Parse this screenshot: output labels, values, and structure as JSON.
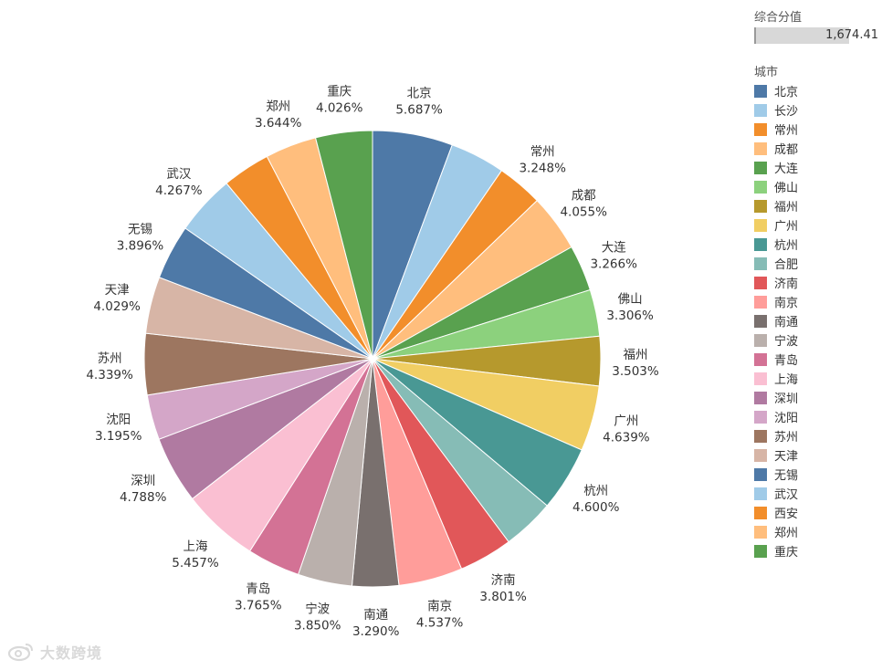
{
  "chart_data": {
    "type": "pie",
    "title": "",
    "slices": [
      {
        "label": "北京",
        "value": 5.687,
        "display": "5.687%",
        "color": "#4e79a7"
      },
      {
        "label": "长沙",
        "value": 3.9,
        "display": "",
        "color": "#a0cbe8"
      },
      {
        "label": "常州",
        "value": 3.248,
        "display": "3.248%",
        "color": "#f28e2b"
      },
      {
        "label": "成都",
        "value": 4.055,
        "display": "4.055%",
        "color": "#ffbe7d"
      },
      {
        "label": "大连",
        "value": 3.266,
        "display": "3.266%",
        "color": "#59a14f"
      },
      {
        "label": "佛山",
        "value": 3.306,
        "display": "3.306%",
        "color": "#8cd17d"
      },
      {
        "label": "福州",
        "value": 3.503,
        "display": "3.503%",
        "color": "#b6992d"
      },
      {
        "label": "广州",
        "value": 4.639,
        "display": "4.639%",
        "color": "#f1ce63"
      },
      {
        "label": "杭州",
        "value": 4.6,
        "display": "4.600%",
        "color": "#499894"
      },
      {
        "label": "合肥",
        "value": 3.7,
        "display": "",
        "color": "#86bcb6"
      },
      {
        "label": "济南",
        "value": 3.801,
        "display": "3.801%",
        "color": "#e15759"
      },
      {
        "label": "南京",
        "value": 4.537,
        "display": "4.537%",
        "color": "#ff9d9a"
      },
      {
        "label": "南通",
        "value": 3.29,
        "display": "3.290%",
        "color": "#79706e"
      },
      {
        "label": "宁波",
        "value": 3.85,
        "display": "3.850%",
        "color": "#bab0ac"
      },
      {
        "label": "青岛",
        "value": 3.765,
        "display": "3.765%",
        "color": "#d37295"
      },
      {
        "label": "上海",
        "value": 5.457,
        "display": "5.457%",
        "color": "#fabfd2"
      },
      {
        "label": "深圳",
        "value": 4.788,
        "display": "4.788%",
        "color": "#b07aa1"
      },
      {
        "label": "沈阳",
        "value": 3.195,
        "display": "3.195%",
        "color": "#d4a6c8"
      },
      {
        "label": "苏州",
        "value": 4.339,
        "display": "4.339%",
        "color": "#9d7660"
      },
      {
        "label": "天津",
        "value": 4.029,
        "display": "4.029%",
        "color": "#d7b5a6"
      },
      {
        "label": "无锡",
        "value": 3.896,
        "display": "3.896%",
        "color": "#4e79a7"
      },
      {
        "label": "武汉",
        "value": 4.267,
        "display": "4.267%",
        "color": "#a0cbe8"
      },
      {
        "label": "西安",
        "value": 3.4,
        "display": "",
        "color": "#f28e2b"
      },
      {
        "label": "郑州",
        "value": 3.644,
        "display": "3.644%",
        "color": "#ffbe7d"
      },
      {
        "label": "重庆",
        "value": 4.026,
        "display": "4.026%",
        "color": "#59a14f"
      }
    ]
  },
  "legend": {
    "size_title": "综合分值",
    "size_value": "1,674.41",
    "color_title": "城市",
    "items": [
      {
        "label": "北京",
        "color": "#4e79a7"
      },
      {
        "label": "长沙",
        "color": "#a0cbe8"
      },
      {
        "label": "常州",
        "color": "#f28e2b"
      },
      {
        "label": "成都",
        "color": "#ffbe7d"
      },
      {
        "label": "大连",
        "color": "#59a14f"
      },
      {
        "label": "佛山",
        "color": "#8cd17d"
      },
      {
        "label": "福州",
        "color": "#b6992d"
      },
      {
        "label": "广州",
        "color": "#f1ce63"
      },
      {
        "label": "杭州",
        "color": "#499894"
      },
      {
        "label": "合肥",
        "color": "#86bcb6"
      },
      {
        "label": "济南",
        "color": "#e15759"
      },
      {
        "label": "南京",
        "color": "#ff9d9a"
      },
      {
        "label": "南通",
        "color": "#79706e"
      },
      {
        "label": "宁波",
        "color": "#bab0ac"
      },
      {
        "label": "青岛",
        "color": "#d37295"
      },
      {
        "label": "上海",
        "color": "#fabfd2"
      },
      {
        "label": "深圳",
        "color": "#b07aa1"
      },
      {
        "label": "沈阳",
        "color": "#d4a6c8"
      },
      {
        "label": "苏州",
        "color": "#9d7660"
      },
      {
        "label": "天津",
        "color": "#d7b5a6"
      },
      {
        "label": "无锡",
        "color": "#4e79a7"
      },
      {
        "label": "武汉",
        "color": "#a0cbe8"
      },
      {
        "label": "西安",
        "color": "#f28e2b"
      },
      {
        "label": "郑州",
        "color": "#ffbe7d"
      },
      {
        "label": "重庆",
        "color": "#59a14f"
      }
    ]
  },
  "watermark": {
    "text": "大数跨境",
    "icon": "weibo-logo-icon"
  }
}
